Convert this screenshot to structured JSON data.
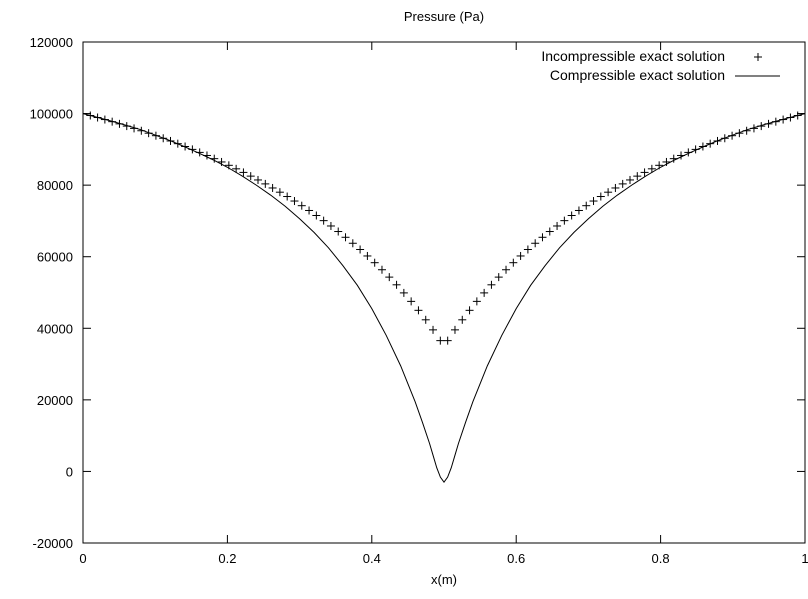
{
  "chart_data": {
    "type": "line",
    "title": "Pressure (Pa)",
    "xlabel": "x(m)",
    "ylabel": "",
    "xlim": [
      0,
      1
    ],
    "ylim": [
      -20000,
      120000
    ],
    "xticks": [
      0,
      0.2,
      0.4,
      0.6,
      0.8,
      1
    ],
    "xtick_labels": [
      "0",
      "0.2",
      "0.4",
      "0.6",
      "0.8",
      "1"
    ],
    "yticks": [
      -20000,
      0,
      20000,
      40000,
      60000,
      80000,
      100000,
      120000
    ],
    "ytick_labels": [
      "-20000",
      "0",
      "20000",
      "40000",
      "60000",
      "80000",
      "100000",
      "120000"
    ],
    "grid": false,
    "legend_position": "top-right",
    "series": [
      {
        "name": "Incompressible exact solution",
        "marker": "plus",
        "style": "points",
        "color": "#000000",
        "x": [
          0.0,
          0.0101,
          0.0202,
          0.0303,
          0.0404,
          0.0505,
          0.0606,
          0.0707,
          0.0808,
          0.0909,
          0.101,
          0.1111,
          0.1212,
          0.1313,
          0.1414,
          0.1515,
          0.1616,
          0.1717,
          0.1818,
          0.1919,
          0.202,
          0.2121,
          0.2222,
          0.2323,
          0.2424,
          0.2525,
          0.2626,
          0.2727,
          0.2828,
          0.2929,
          0.303,
          0.3131,
          0.3232,
          0.3333,
          0.3434,
          0.3535,
          0.3636,
          0.3737,
          0.3838,
          0.3939,
          0.404,
          0.4141,
          0.4242,
          0.4343,
          0.4444,
          0.4545,
          0.4646,
          0.4747,
          0.4848,
          0.4949,
          0.5051,
          0.5152,
          0.5253,
          0.5354,
          0.5455,
          0.5556,
          0.5657,
          0.5758,
          0.5859,
          0.596,
          0.6061,
          0.6162,
          0.6263,
          0.6364,
          0.6465,
          0.6566,
          0.6667,
          0.6768,
          0.6869,
          0.697,
          0.7071,
          0.7172,
          0.7273,
          0.7374,
          0.7475,
          0.7576,
          0.7677,
          0.7778,
          0.7879,
          0.798,
          0.8081,
          0.8182,
          0.8283,
          0.8384,
          0.8485,
          0.8586,
          0.8687,
          0.8788,
          0.8889,
          0.899,
          0.9091,
          0.9192,
          0.9293,
          0.9394,
          0.9495,
          0.9596,
          0.9697,
          0.9798,
          0.9899,
          1.0
        ],
        "y": [
          100000,
          99460,
          98900,
          98330,
          97740,
          97130,
          96500,
          95860,
          95200,
          94520,
          93820,
          93100,
          92350,
          91590,
          90800,
          89990,
          89150,
          88290,
          87400,
          86480,
          85540,
          84560,
          83560,
          82520,
          81450,
          80350,
          79210,
          78030,
          76820,
          75560,
          74260,
          72920,
          71520,
          70080,
          68590,
          67040,
          65430,
          63760,
          62020,
          60210,
          58330,
          56360,
          54300,
          52150,
          49890,
          47520,
          45020,
          42370,
          39560,
          36550,
          36550,
          39560,
          42370,
          45020,
          47520,
          49890,
          52150,
          54300,
          56360,
          58330,
          60210,
          62020,
          63760,
          65430,
          67040,
          68590,
          70080,
          71520,
          72920,
          74260,
          75560,
          76820,
          78030,
          79210,
          80350,
          81450,
          82520,
          83560,
          84560,
          85540,
          86480,
          87400,
          88290,
          89150,
          89990,
          90800,
          91590,
          92350,
          93100,
          93820,
          94520,
          95200,
          95860,
          96500,
          97130,
          97740,
          98330,
          98900,
          99460,
          100000
        ]
      },
      {
        "name": "Compressible exact solution",
        "marker": "none",
        "style": "line",
        "color": "#000000",
        "x": [
          0.0,
          0.02,
          0.04,
          0.06,
          0.08,
          0.1,
          0.12,
          0.14,
          0.16,
          0.18,
          0.2,
          0.22,
          0.24,
          0.26,
          0.28,
          0.3,
          0.32,
          0.34,
          0.36,
          0.38,
          0.4,
          0.42,
          0.44,
          0.46,
          0.47,
          0.48,
          0.485,
          0.49,
          0.495,
          0.5,
          0.505,
          0.51,
          0.515,
          0.52,
          0.53,
          0.54,
          0.56,
          0.58,
          0.6,
          0.62,
          0.64,
          0.66,
          0.68,
          0.7,
          0.72,
          0.74,
          0.76,
          0.78,
          0.8,
          0.82,
          0.84,
          0.86,
          0.88,
          0.9,
          0.92,
          0.94,
          0.96,
          0.98,
          1.0
        ],
        "y": [
          100000,
          98950,
          97850,
          96700,
          95500,
          94000,
          92500,
          90800,
          89000,
          87100,
          85000,
          82600,
          80000,
          77200,
          74100,
          70600,
          66800,
          62500,
          57500,
          52000,
          45500,
          38000,
          29500,
          19500,
          13800,
          7800,
          4400,
          1000,
          -1600,
          -3000,
          -1600,
          1000,
          4400,
          7800,
          13800,
          19500,
          29500,
          38000,
          45500,
          52000,
          57500,
          62500,
          66800,
          70600,
          74100,
          77200,
          80000,
          82600,
          85000,
          87100,
          89000,
          90800,
          92500,
          94000,
          95500,
          96700,
          97850,
          98950,
          100000
        ]
      }
    ]
  }
}
